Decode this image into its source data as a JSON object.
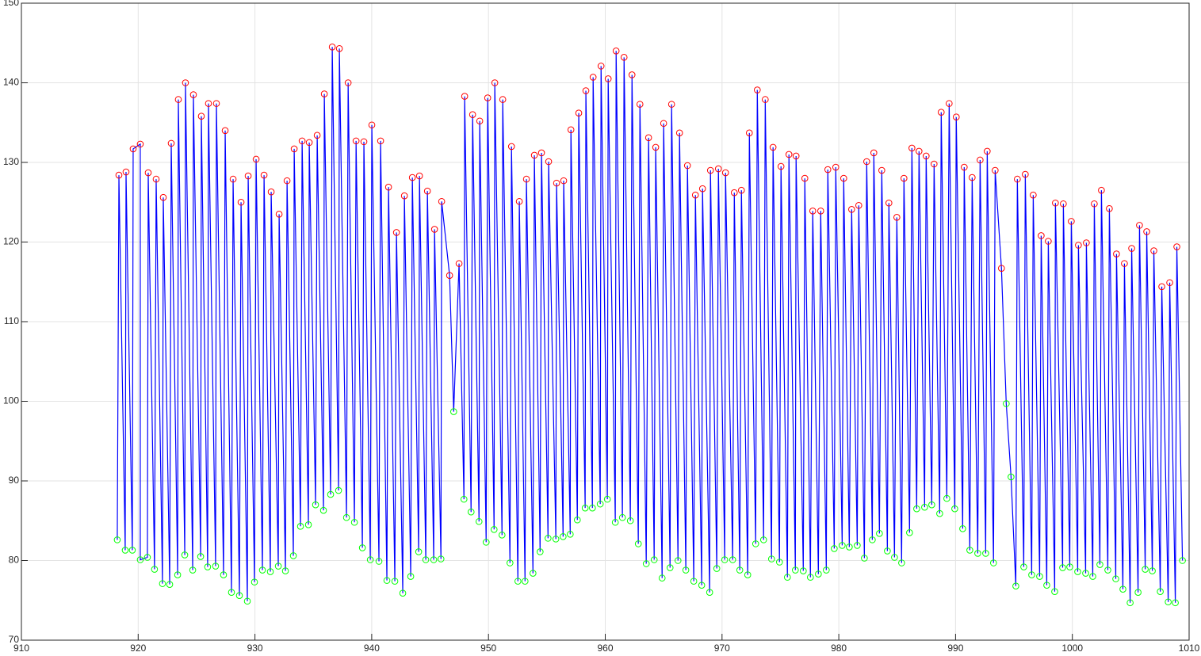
{
  "chart_data": {
    "type": "scatter",
    "xlim": [
      910,
      1010
    ],
    "xticks": [
      910,
      920,
      930,
      940,
      950,
      960,
      970,
      980,
      990,
      1000,
      1010
    ],
    "ylim": [
      70,
      150
    ],
    "yticks": [
      70,
      80,
      90,
      100,
      110,
      120,
      130,
      140,
      150
    ],
    "grid": true,
    "line_color": "#0000ff",
    "series": [
      {
        "color": "#ff0000",
        "marker": "circle",
        "x": [
          918.35,
          918.96,
          919.57,
          920.18,
          920.86,
          921.54,
          922.15,
          922.83,
          923.44,
          924.05,
          924.73,
          925.41,
          926.02,
          926.7,
          927.45,
          928.13,
          928.81,
          929.42,
          930.1,
          930.78,
          931.39,
          932.07,
          932.75,
          933.36,
          934.04,
          934.65,
          935.33,
          935.94,
          936.62,
          937.23,
          937.98,
          938.66,
          939.33,
          940.01,
          940.76,
          941.44,
          942.12,
          942.8,
          943.48,
          944.09,
          944.77,
          945.38,
          945.99,
          946.67,
          947.48,
          947.96,
          948.64,
          949.25,
          949.93,
          950.54,
          951.22,
          951.97,
          952.64,
          953.25,
          953.93,
          954.54,
          955.15,
          955.83,
          956.44,
          957.06,
          957.73,
          958.34,
          958.96,
          959.64,
          960.25,
          960.93,
          961.61,
          962.29,
          962.97,
          963.71,
          964.32,
          965.0,
          965.68,
          966.36,
          967.04,
          967.72,
          968.33,
          969.01,
          969.69,
          970.3,
          971.05,
          971.66,
          972.34,
          973.02,
          973.7,
          974.37,
          975.05,
          975.73,
          976.34,
          977.09,
          977.77,
          978.45,
          979.06,
          979.74,
          980.42,
          981.1,
          981.71,
          982.39,
          983.0,
          983.68,
          984.29,
          984.97,
          985.58,
          986.26,
          986.87,
          987.48,
          988.16,
          988.77,
          989.45,
          990.06,
          990.74,
          991.42,
          992.1,
          992.71,
          993.39,
          993.93,
          995.29,
          995.97,
          996.65,
          997.33,
          997.94,
          998.55,
          999.23,
          999.91,
          1000.52,
          1001.2,
          1001.88,
          1002.49,
          1003.17,
          1003.78,
          1004.46,
          1005.08,
          1005.75,
          1006.37,
          1006.98,
          1007.66,
          1008.34,
          1008.95
        ],
        "values": [
          128.4,
          128.8,
          131.7,
          132.3,
          128.7,
          127.9,
          125.6,
          132.4,
          137.9,
          140.0,
          138.5,
          135.8,
          137.4,
          137.4,
          134.0,
          127.9,
          125.0,
          128.3,
          130.4,
          128.4,
          126.3,
          123.5,
          127.7,
          131.7,
          132.7,
          132.5,
          133.4,
          138.6,
          144.5,
          144.3,
          140.0,
          132.7,
          132.6,
          134.7,
          132.7,
          126.9,
          121.2,
          125.8,
          128.1,
          128.3,
          126.4,
          121.6,
          125.1,
          115.8,
          117.3,
          138.3,
          136.0,
          135.2,
          138.1,
          140.0,
          137.9,
          132.0,
          125.1,
          127.9,
          130.9,
          131.2,
          130.1,
          127.4,
          127.7,
          134.1,
          136.2,
          139.0,
          140.7,
          142.1,
          140.5,
          144.0,
          143.2,
          141.0,
          137.3,
          133.1,
          131.9,
          134.9,
          137.3,
          133.7,
          129.6,
          125.9,
          126.7,
          129.0,
          129.2,
          128.7,
          126.2,
          126.5,
          133.7,
          139.1,
          137.9,
          131.9,
          129.5,
          131.0,
          130.8,
          128.0,
          123.9,
          123.9,
          129.1,
          129.4,
          128.0,
          124.1,
          124.6,
          130.1,
          131.2,
          129.0,
          124.9,
          123.1,
          128.0,
          131.8,
          131.4,
          130.8,
          129.8,
          136.3,
          137.4,
          135.7,
          129.4,
          128.1,
          130.3,
          131.4,
          129.0,
          116.7,
          127.9,
          128.5,
          125.9,
          120.8,
          120.1,
          124.9,
          124.8,
          122.6,
          119.6,
          119.9,
          124.8,
          126.5,
          124.2,
          118.5,
          117.3,
          119.2,
          122.1,
          121.3,
          118.9,
          114.4,
          114.9,
          119.4
        ]
      },
      {
        "color": "#00ff00",
        "marker": "circle",
        "x": [
          918.21,
          918.89,
          919.5,
          920.18,
          920.79,
          921.4,
          922.08,
          922.7,
          923.38,
          923.99,
          924.67,
          925.35,
          925.95,
          926.63,
          927.31,
          927.99,
          928.67,
          929.35,
          929.96,
          930.64,
          931.32,
          932.0,
          932.61,
          933.29,
          933.9,
          934.58,
          935.19,
          935.87,
          936.48,
          937.16,
          937.84,
          938.52,
          939.2,
          939.88,
          940.62,
          941.3,
          941.98,
          942.66,
          943.34,
          944.02,
          944.63,
          945.31,
          945.93,
          947.02,
          947.9,
          948.51,
          949.19,
          949.8,
          950.48,
          951.16,
          951.84,
          952.52,
          953.13,
          953.81,
          954.42,
          955.1,
          955.77,
          956.39,
          957.0,
          957.61,
          958.28,
          958.9,
          959.57,
          960.18,
          960.86,
          961.47,
          962.15,
          962.83,
          963.51,
          964.19,
          964.87,
          965.55,
          966.23,
          966.9,
          967.58,
          968.26,
          968.94,
          969.55,
          970.23,
          970.91,
          971.52,
          972.2,
          972.88,
          973.56,
          974.24,
          974.92,
          975.6,
          976.28,
          976.96,
          977.57,
          978.25,
          978.93,
          979.61,
          980.29,
          980.9,
          981.58,
          982.19,
          982.87,
          983.48,
          984.16,
          984.77,
          985.38,
          986.06,
          986.67,
          987.35,
          987.96,
          988.64,
          989.25,
          989.93,
          990.61,
          991.22,
          991.9,
          992.58,
          993.25,
          994.34,
          994.75,
          995.16,
          995.84,
          996.52,
          997.2,
          997.81,
          998.49,
          999.17,
          999.78,
          1000.46,
          1001.14,
          1001.75,
          1002.36,
          1003.04,
          1003.72,
          1004.33,
          1004.95,
          1005.63,
          1006.24,
          1006.85,
          1007.53,
          1008.21,
          1008.82,
          1009.43
        ],
        "values": [
          82.6,
          81.3,
          81.3,
          80.1,
          80.4,
          78.9,
          77.1,
          77.0,
          78.2,
          80.7,
          78.8,
          80.5,
          79.2,
          79.3,
          78.2,
          76.0,
          75.6,
          74.9,
          77.3,
          78.8,
          78.6,
          79.3,
          78.7,
          80.6,
          84.3,
          84.5,
          87.0,
          86.3,
          88.3,
          88.8,
          85.4,
          84.8,
          81.6,
          80.1,
          79.9,
          77.5,
          77.4,
          75.9,
          78.0,
          81.1,
          80.1,
          80.1,
          80.2,
          98.7,
          87.7,
          86.1,
          84.9,
          82.3,
          83.9,
          83.2,
          79.7,
          77.4,
          77.4,
          78.4,
          81.1,
          82.8,
          82.7,
          83.0,
          83.3,
          85.1,
          86.6,
          86.6,
          87.1,
          87.7,
          84.8,
          85.4,
          85.0,
          82.1,
          79.6,
          80.1,
          77.8,
          79.1,
          80.0,
          78.8,
          77.4,
          76.9,
          76.0,
          79.0,
          80.1,
          80.1,
          78.8,
          78.2,
          82.1,
          82.6,
          80.2,
          79.8,
          77.9,
          78.8,
          78.7,
          77.9,
          78.3,
          78.8,
          81.5,
          81.9,
          81.7,
          81.9,
          80.3,
          82.6,
          83.4,
          81.2,
          80.4,
          79.7,
          83.5,
          86.5,
          86.7,
          87.0,
          85.9,
          87.8,
          86.5,
          84.0,
          81.3,
          80.9,
          80.9,
          79.7,
          99.7,
          90.5,
          76.8,
          79.2,
          78.2,
          78.0,
          76.9,
          76.1,
          79.1,
          79.2,
          78.6,
          78.4,
          78.0,
          79.5,
          78.8,
          77.7,
          76.4,
          74.7,
          76.0,
          78.9,
          78.7,
          76.1,
          74.8,
          74.7,
          80.0
        ]
      }
    ]
  }
}
